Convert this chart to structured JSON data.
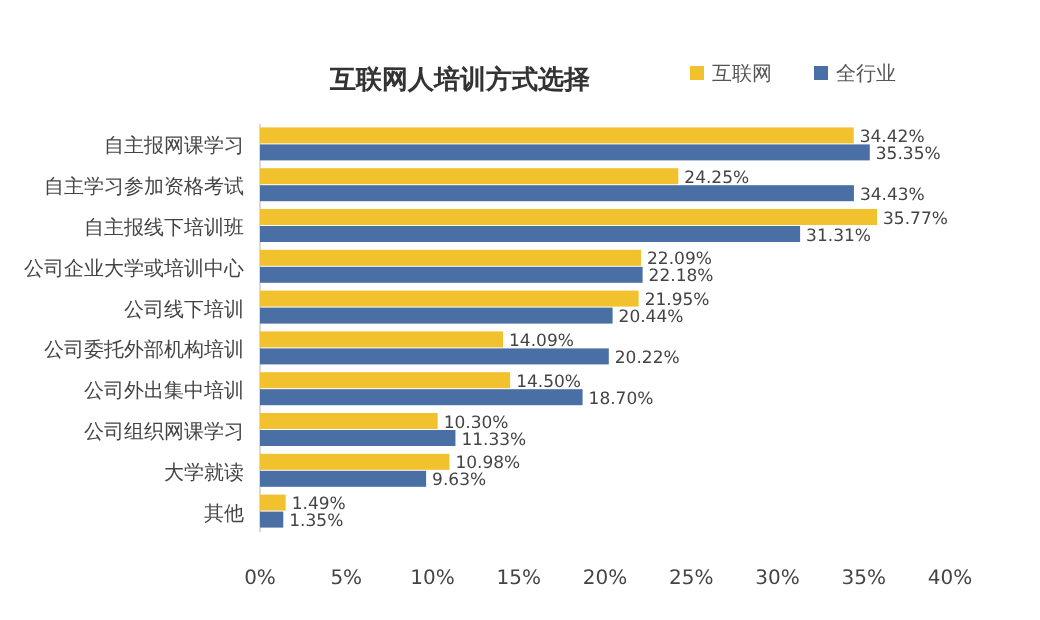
{
  "chart_data": {
    "type": "bar",
    "orientation": "horizontal",
    "title": "互联网人培训方式选择",
    "categories": [
      "自主报网课学习",
      "自主学习参加资格考试",
      "自主报线下培训班",
      "公司企业大学或培训中心",
      "公司线下培训",
      "公司委托外部机构培训",
      "公司外出集中培训",
      "公司组织网课学习",
      "大学就读",
      "其他"
    ],
    "series": [
      {
        "name": "互联网",
        "color": "#f2c12e",
        "values": [
          34.42,
          24.25,
          35.77,
          22.09,
          21.95,
          14.09,
          14.5,
          10.3,
          10.98,
          1.49
        ],
        "value_labels": [
          "34.42%",
          "24.25%",
          "35.77%",
          "22.09%",
          "21.95%",
          "14.09%",
          "14.50%",
          "10.30%",
          "10.98%",
          "1.49%"
        ]
      },
      {
        "name": "全行业",
        "color": "#4a6fa5",
        "values": [
          35.35,
          34.43,
          31.31,
          22.18,
          20.44,
          20.22,
          18.7,
          11.33,
          9.63,
          1.35
        ],
        "value_labels": [
          "35.35%",
          "34.43%",
          "31.31%",
          "22.18%",
          "20.44%",
          "20.22%",
          "18.70%",
          "11.33%",
          "9.63%",
          "1.35%"
        ]
      }
    ],
    "xlim": [
      0,
      40
    ],
    "xticks": [
      {
        "value": 0,
        "label": "0%"
      },
      {
        "value": 5,
        "label": "5%"
      },
      {
        "value": 10,
        "label": "10%"
      },
      {
        "value": 15,
        "label": "15%"
      },
      {
        "value": 20,
        "label": "20%"
      },
      {
        "value": 25,
        "label": "25%"
      },
      {
        "value": 30,
        "label": "30%"
      },
      {
        "value": 35,
        "label": "35%"
      },
      {
        "value": 40,
        "label": "40%"
      }
    ],
    "legend": "top right",
    "grid": false
  }
}
